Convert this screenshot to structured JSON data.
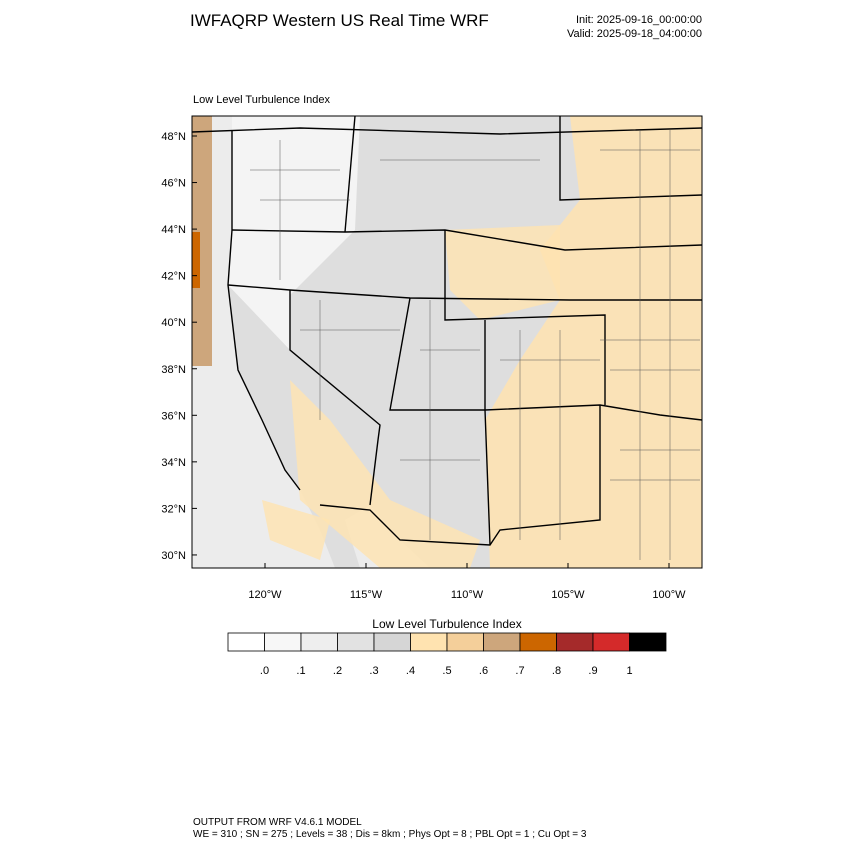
{
  "header": {
    "title": "IWFAQRP Western US Real Time WRF",
    "init": "Init: 2025-09-16_00:00:00",
    "valid": "Valid: 2025-09-18_04:00:00"
  },
  "map": {
    "title": "Low Level Turbulence Index",
    "lat_labels": [
      "48°N",
      "46°N",
      "44°N",
      "42°N",
      "40°N",
      "38°N",
      "36°N",
      "34°N",
      "32°N",
      "30°N"
    ],
    "lon_labels": [
      "120°W",
      "115°W",
      "110°W",
      "105°W",
      "100°W"
    ]
  },
  "colorbar": {
    "title": "Low Level Turbulence Index",
    "colors": [
      "#ffffff",
      "#f7f7f7",
      "#eeeeee",
      "#e2e2e2",
      "#d6d6d6",
      "#ffe3b0",
      "#f4cf9a",
      "#cda67c",
      "#cc6600",
      "#a52a2a",
      "#d42a2a",
      "#000000"
    ],
    "labels": [
      ".0",
      ".1",
      ".2",
      ".3",
      ".4",
      ".5",
      ".6",
      ".7",
      ".8",
      ".9",
      "1"
    ]
  },
  "footer": {
    "line1": "OUTPUT FROM WRF V4.6.1 MODEL",
    "line2": "WE = 310 ; SN = 275 ; Levels = 38 ; Dis = 8km ; Phys Opt = 8 ; PBL Opt = 1 ; Cu Opt = 3"
  }
}
